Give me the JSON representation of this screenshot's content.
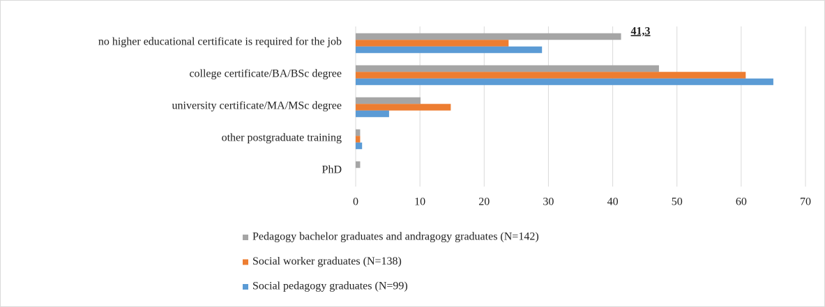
{
  "chart_data": {
    "type": "hbar",
    "categories": [
      "no higher educational certificate is required for the job",
      "college certificate/BA/BSc degree",
      "university certificate/MA/MSc degree",
      "other postgraduate training",
      "PhD"
    ],
    "series": [
      {
        "name": "Pedagogy bachelor graduates and andragogy graduates (N=142)",
        "color": "#a5a5a5",
        "values": [
          41.3,
          47.2,
          10.1,
          0.7,
          0.7
        ],
        "value_labels": [
          "41,3",
          null,
          null,
          null,
          null
        ]
      },
      {
        "name": "Social worker graduates (N=138)",
        "color": "#ed7d31",
        "values": [
          23.8,
          60.7,
          14.8,
          0.7,
          0
        ]
      },
      {
        "name": "Social pedagogy graduates (N=99)",
        "color": "#5b9bd5",
        "values": [
          29.0,
          65.0,
          5.2,
          1.0,
          0
        ]
      }
    ],
    "xlim": [
      0,
      70
    ],
    "xticks": [
      0,
      10,
      20,
      30,
      40,
      50,
      60,
      70
    ],
    "grid": true,
    "legend": "bottom"
  }
}
